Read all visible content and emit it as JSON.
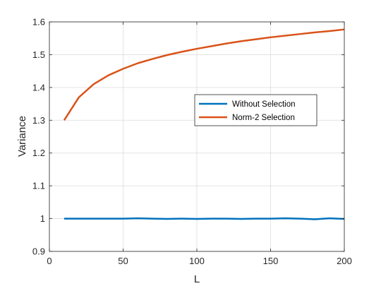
{
  "chart_data": {
    "type": "line",
    "xlabel": "L",
    "ylabel": "Variance",
    "xlim": [
      0,
      200
    ],
    "ylim": [
      0.9,
      1.6
    ],
    "x_ticks": [
      0,
      50,
      100,
      150,
      200
    ],
    "y_ticks": [
      0.9,
      1.0,
      1.1,
      1.2,
      1.3,
      1.4,
      1.5,
      1.6
    ],
    "x_tick_labels": [
      "0",
      "50",
      "100",
      "150",
      "200"
    ],
    "y_tick_labels": [
      "0.9",
      "1",
      "1.1",
      "1.2",
      "1.3",
      "1.4",
      "1.5",
      "1.6"
    ],
    "grid": true,
    "legend_position": "center-right",
    "series": [
      {
        "name": "Without Selection",
        "color": "#0072BD",
        "x": [
          10,
          20,
          30,
          40,
          50,
          60,
          70,
          80,
          90,
          100,
          110,
          120,
          130,
          140,
          150,
          160,
          170,
          180,
          190,
          200
        ],
        "y": [
          1.0,
          1.0,
          1.0,
          1.0,
          1.0,
          1.001,
          1.0,
          0.999,
          1.0,
          0.999,
          1.0,
          1.0,
          0.999,
          1.0,
          1.0,
          1.001,
          1.0,
          0.998,
          1.001,
          0.999
        ]
      },
      {
        "name": "Norm-2 Selection",
        "color": "#D95319",
        "x": [
          10,
          20,
          30,
          40,
          50,
          60,
          70,
          80,
          90,
          100,
          110,
          120,
          130,
          140,
          150,
          160,
          170,
          180,
          190,
          200
        ],
        "y": [
          1.3,
          1.37,
          1.41,
          1.437,
          1.457,
          1.474,
          1.487,
          1.499,
          1.509,
          1.518,
          1.526,
          1.534,
          1.541,
          1.547,
          1.553,
          1.558,
          1.563,
          1.568,
          1.572,
          1.577
        ]
      }
    ]
  }
}
